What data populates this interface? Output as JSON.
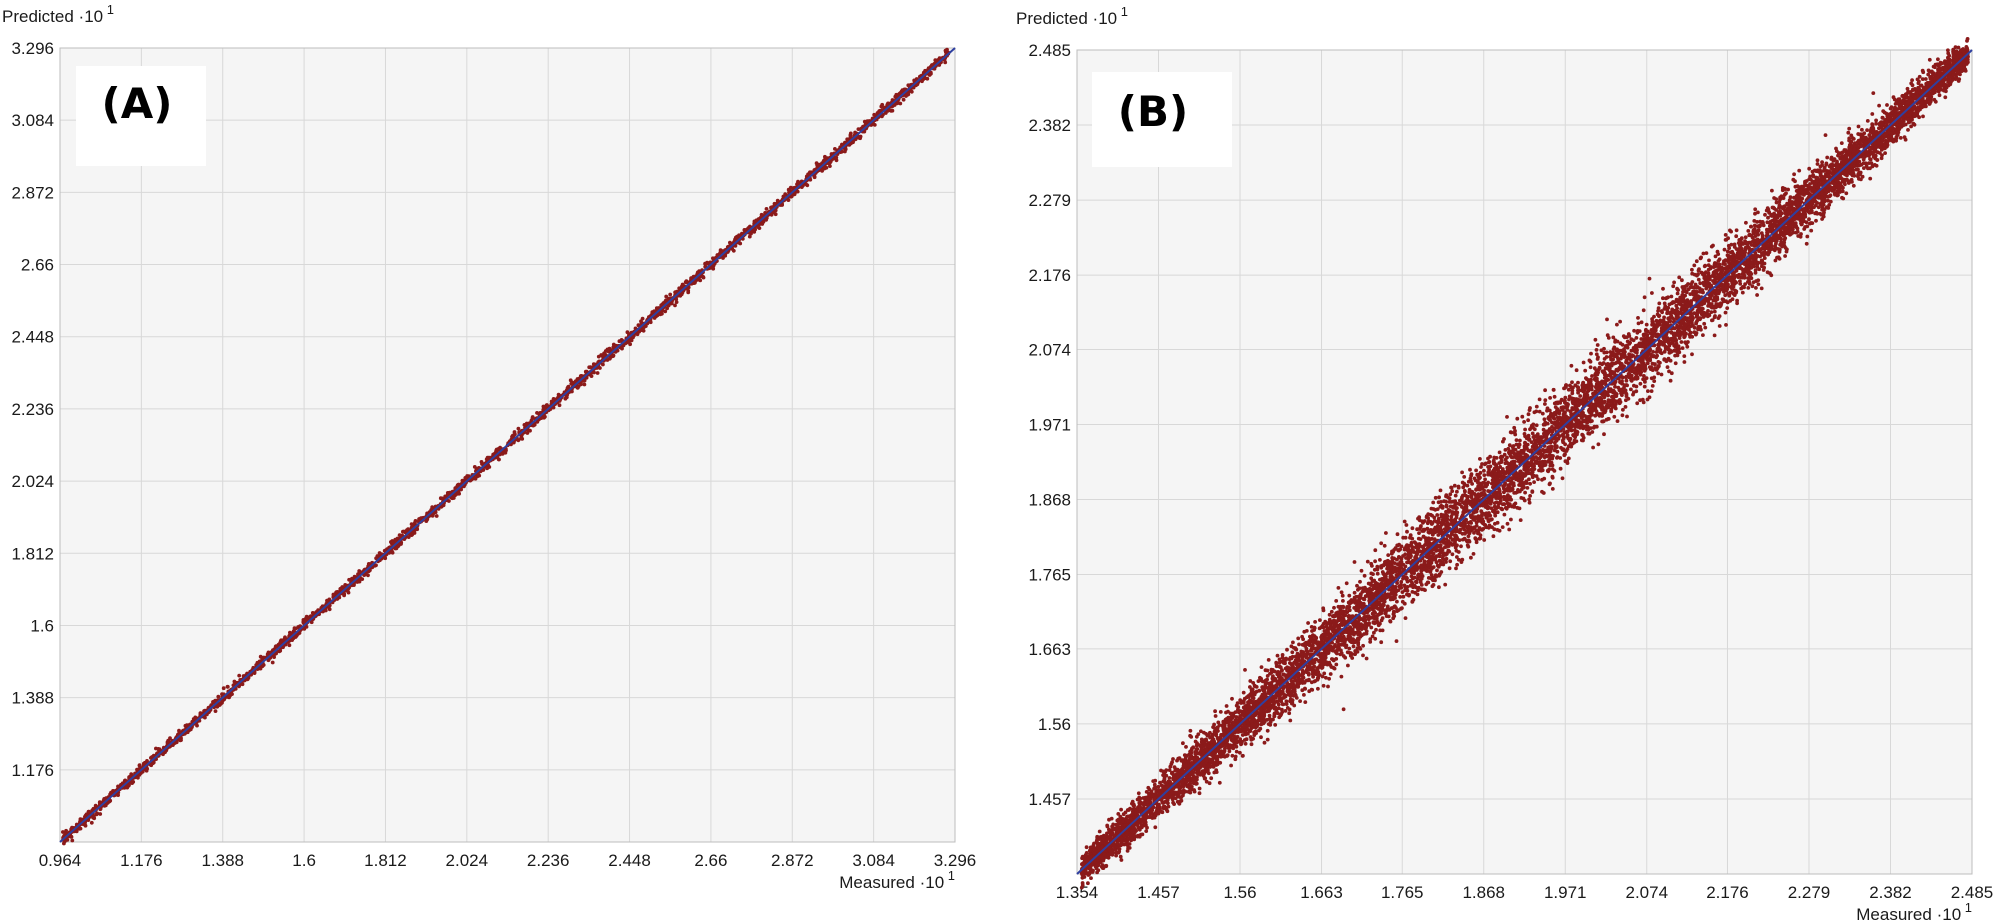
{
  "colors": {
    "points": "#8b1a1a",
    "fit_line": "#2e3fa0",
    "plot_bg": "#f5f5f5",
    "grid": "#d8d8d8",
    "frame": "#bdbdbd"
  },
  "chart_data": [
    {
      "type": "scatter",
      "panel_label": "(A)",
      "xlabel": "Measured",
      "ylabel": "Predicted",
      "axis_exponent": "·10",
      "axis_exponent_power": "1",
      "xlim": [
        0.964,
        3.296
      ],
      "ylim": [
        0.964,
        3.296
      ],
      "x_ticks": [
        "0.964",
        "1.176",
        "1.388",
        "1.6",
        "1.812",
        "2.024",
        "2.236",
        "2.448",
        "2.66",
        "2.872",
        "3.084",
        "3.296"
      ],
      "y_ticks": [
        "1.176",
        "1.388",
        "1.6",
        "1.812",
        "2.024",
        "2.236",
        "2.448",
        "2.66",
        "2.872",
        "3.084",
        "3.296"
      ],
      "grid": true,
      "fit_line": {
        "x": [
          0.964,
          3.296
        ],
        "y": [
          0.964,
          3.296
        ]
      },
      "series": [
        {
          "points_approx": 2600,
          "x_range": [
            0.97,
            3.28
          ],
          "relation": "y ≈ x",
          "spread_sd": 0.008
        }
      ]
    },
    {
      "type": "scatter",
      "panel_label": "(B)",
      "xlabel": "Measured",
      "ylabel": "Predicted",
      "axis_exponent": "·10",
      "axis_exponent_power": "1",
      "xlim": [
        1.354,
        2.485
      ],
      "ylim": [
        1.354,
        2.485
      ],
      "x_ticks": [
        "1.354",
        "1.457",
        "1.56",
        "1.663",
        "1.765",
        "1.868",
        "1.971",
        "2.074",
        "2.176",
        "2.279",
        "2.382",
        "2.485"
      ],
      "y_ticks": [
        "1.457",
        "1.56",
        "1.663",
        "1.765",
        "1.868",
        "1.971",
        "2.074",
        "2.176",
        "2.279",
        "2.382",
        "2.485"
      ],
      "grid": true,
      "fit_line": {
        "x": [
          1.354,
          2.485
        ],
        "y": [
          1.354,
          2.485
        ]
      },
      "series": [
        {
          "points_approx": 9000,
          "x_range": [
            1.36,
            2.48
          ],
          "relation": "y ≈ x",
          "spread_sd": 0.012
        }
      ]
    }
  ]
}
